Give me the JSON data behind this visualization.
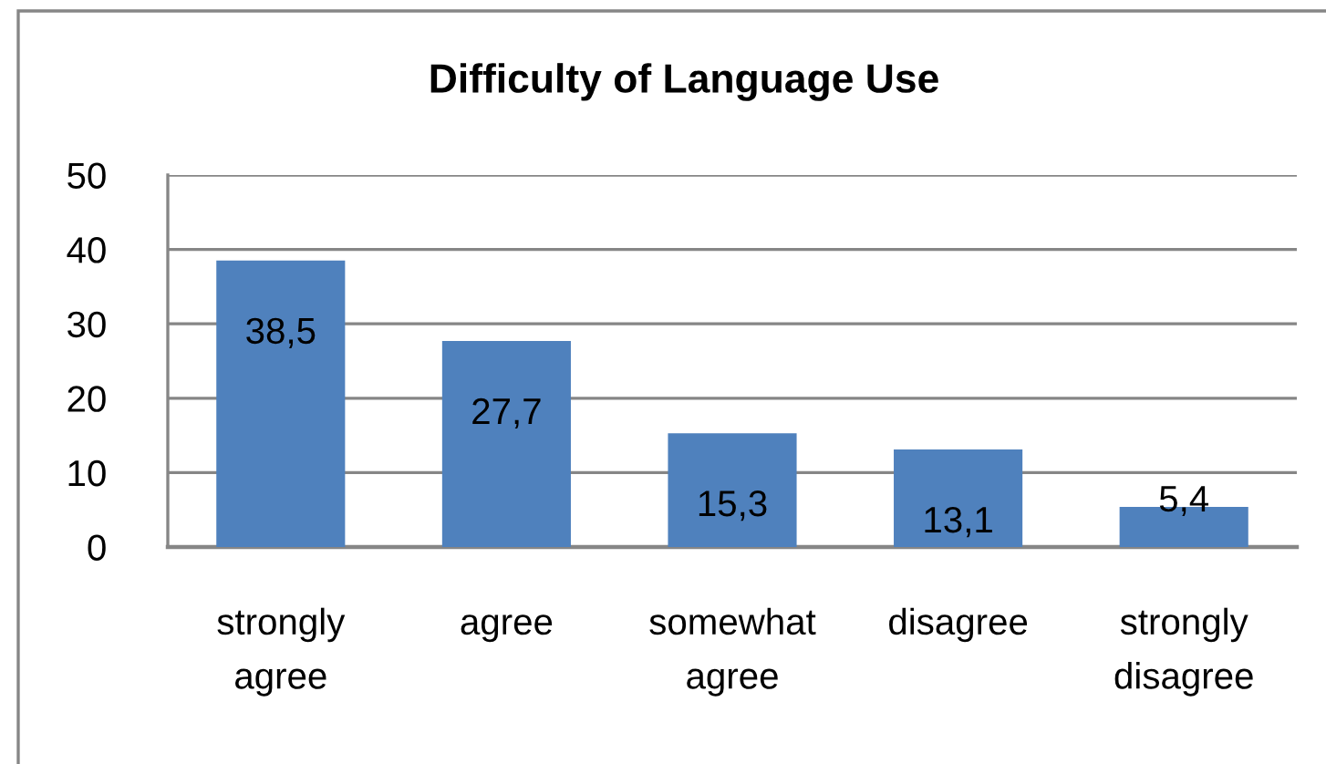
{
  "chart_data": {
    "type": "bar",
    "title": "Difficulty of Language Use",
    "categories": [
      "strongly agree",
      "agree",
      "somewhat agree",
      "disagree",
      "strongly disagree"
    ],
    "values": [
      38.5,
      27.7,
      15.3,
      13.1,
      5.4
    ],
    "value_labels": [
      "38,5",
      "27,7",
      "15,3",
      "13,1",
      "5,4"
    ],
    "color": "#4f81bd",
    "ylim": [
      0,
      50
    ],
    "yticks": [
      0,
      10,
      20,
      30,
      40,
      50
    ],
    "grid": "y"
  }
}
